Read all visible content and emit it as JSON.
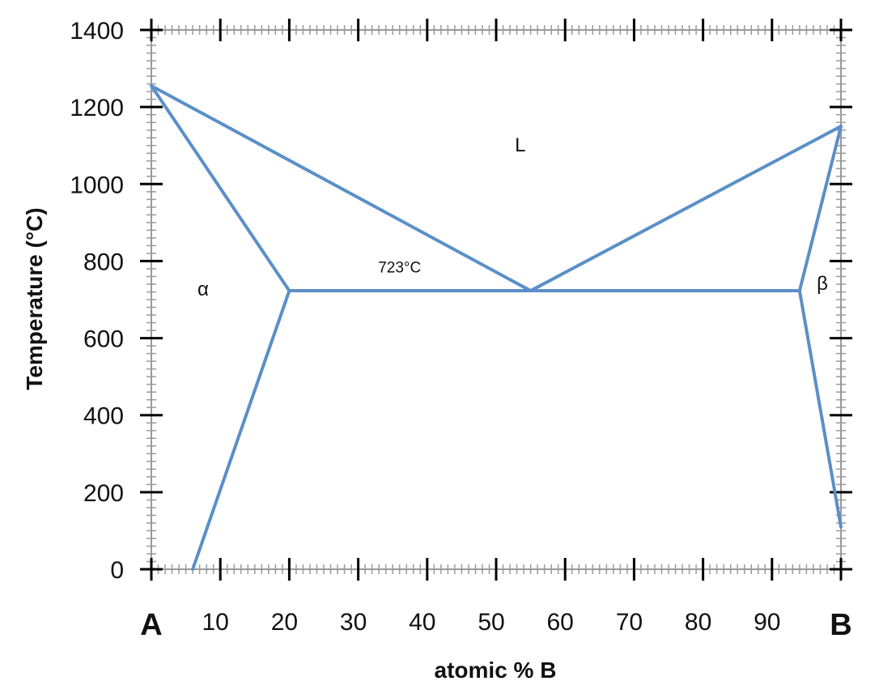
{
  "chart_data": {
    "type": "line",
    "xlabel": "atomic % B",
    "ylabel": "Temperature (°C)",
    "xlim": [
      0,
      100
    ],
    "ylim": [
      0,
      1400
    ],
    "x_ticks": [
      {
        "value": 0,
        "label": "A"
      },
      {
        "value": 10,
        "label": "10"
      },
      {
        "value": 20,
        "label": "20"
      },
      {
        "value": 30,
        "label": "30"
      },
      {
        "value": 40,
        "label": "40"
      },
      {
        "value": 50,
        "label": "50"
      },
      {
        "value": 60,
        "label": "60"
      },
      {
        "value": 70,
        "label": "70"
      },
      {
        "value": 80,
        "label": "80"
      },
      {
        "value": 90,
        "label": "90"
      },
      {
        "value": 100,
        "label": "B"
      }
    ],
    "y_ticks": [
      0,
      200,
      400,
      600,
      800,
      1000,
      1200,
      1400
    ],
    "grid": false,
    "line_color": "#5b8fc7",
    "series": [
      {
        "points": [
          [
            0,
            1255
          ],
          [
            55,
            723
          ],
          [
            100,
            1150
          ]
        ]
      },
      {
        "points": [
          [
            0,
            1255
          ],
          [
            20,
            723
          ]
        ]
      },
      {
        "points": [
          [
            20,
            723
          ],
          [
            94,
            723
          ]
        ]
      },
      {
        "points": [
          [
            20,
            723
          ],
          [
            6,
            0
          ]
        ]
      },
      {
        "points": [
          [
            100,
            1150
          ],
          [
            94,
            723
          ]
        ]
      },
      {
        "points": [
          [
            94,
            723
          ],
          [
            100,
            110
          ]
        ]
      }
    ],
    "annotations": [
      {
        "text": "L",
        "x": 53.5,
        "y": 1085
      },
      {
        "text": "α",
        "x": 7.5,
        "y": 710
      },
      {
        "text": "β",
        "x": 97.3,
        "y": 725
      },
      {
        "text": "723°C",
        "x": 36,
        "y": 770
      }
    ]
  }
}
